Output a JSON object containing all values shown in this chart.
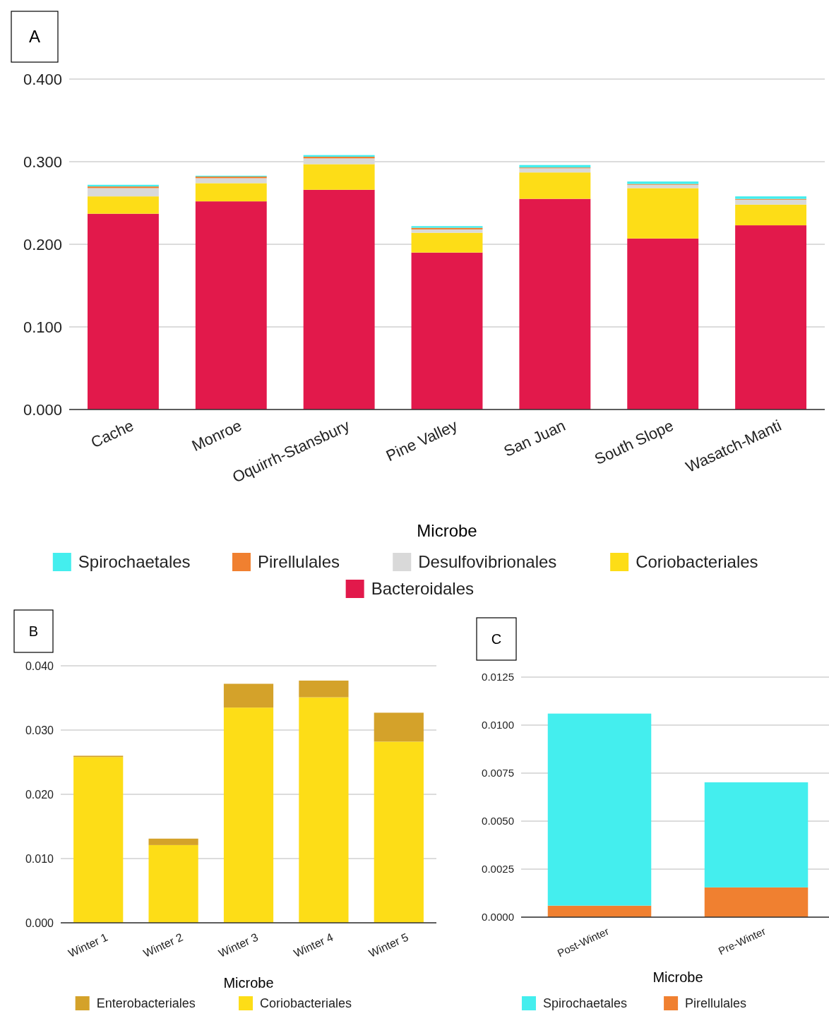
{
  "chart_data": [
    {
      "type": "bar",
      "stacked": true,
      "annotations": [
        "A"
      ],
      "xlabel": "Microbe",
      "categories": [
        "Cache",
        "Monroe",
        "Oquirrh-Stansbury",
        "Pine Valley",
        "San Juan",
        "South Slope",
        "Wasatch-Manti"
      ],
      "series": [
        {
          "name": "Bacteroidales",
          "color": "#e2194b",
          "values": [
            0.237,
            0.252,
            0.266,
            0.19,
            0.255,
            0.207,
            0.223
          ]
        },
        {
          "name": "Coriobacteriales",
          "color": "#fddd17",
          "values": [
            0.021,
            0.022,
            0.031,
            0.024,
            0.032,
            0.061,
            0.025
          ]
        },
        {
          "name": "Desulfovibrionales",
          "color": "#d9d9d9",
          "values": [
            0.01,
            0.006,
            0.007,
            0.004,
            0.005,
            0.004,
            0.006
          ]
        },
        {
          "name": "Pirellulales",
          "color": "#f08030",
          "values": [
            0.002,
            0.002,
            0.002,
            0.002,
            0.001,
            0.001,
            0.001
          ]
        },
        {
          "name": "Spirochaetales",
          "color": "#44eeee",
          "values": [
            0.002,
            0.001,
            0.002,
            0.002,
            0.003,
            0.003,
            0.003
          ]
        }
      ],
      "ylim": [
        0,
        0.4
      ],
      "yticks": [
        {
          "value": 0,
          "label": "0.000"
        },
        {
          "value": 0.1,
          "label": "0.100"
        },
        {
          "value": 0.2,
          "label": "0.200"
        },
        {
          "value": 0.3,
          "label": "0.300"
        },
        {
          "value": 0.4,
          "label": "0.400"
        }
      ],
      "grid": "y",
      "legend": "bottom"
    },
    {
      "type": "bar",
      "stacked": true,
      "annotations": [
        "B"
      ],
      "xlabel": "Microbe",
      "categories": [
        "Winter 1",
        "Winter 2",
        "Winter 3",
        "Winter 4",
        "Winter 5"
      ],
      "series": [
        {
          "name": "Coriobacteriales",
          "color": "#fddd17",
          "values": [
            0.0258,
            0.0121,
            0.0335,
            0.0351,
            0.0282
          ]
        },
        {
          "name": "Enterobacteriales",
          "color": "#d4a22a",
          "values": [
            0.0002,
            0.001,
            0.0037,
            0.0026,
            0.0045
          ]
        }
      ],
      "ylim": [
        0,
        0.04
      ],
      "yticks": [
        {
          "value": 0,
          "label": "0.000"
        },
        {
          "value": 0.01,
          "label": "0.010"
        },
        {
          "value": 0.02,
          "label": "0.020"
        },
        {
          "value": 0.03,
          "label": "0.030"
        },
        {
          "value": 0.04,
          "label": "0.040"
        }
      ],
      "grid": "y",
      "legend": "bottom"
    },
    {
      "type": "bar",
      "stacked": true,
      "annotations": [
        "C"
      ],
      "xlabel": "Microbe",
      "categories": [
        "Post-Winter",
        "Pre-Winter"
      ],
      "series": [
        {
          "name": "Pirellulales",
          "color": "#f08030",
          "values": [
            0.0006,
            0.00155
          ]
        },
        {
          "name": "Spirochaetales",
          "color": "#44eeee",
          "values": [
            0.01,
            0.00547
          ]
        }
      ],
      "ylim": [
        0,
        0.0125
      ],
      "yticks": [
        {
          "value": 0,
          "label": "0.0000"
        },
        {
          "value": 0.0025,
          "label": "0.0025"
        },
        {
          "value": 0.005,
          "label": "0.0050"
        },
        {
          "value": 0.0075,
          "label": "0.0075"
        },
        {
          "value": 0.01,
          "label": "0.0100"
        },
        {
          "value": 0.0125,
          "label": "0.0125"
        }
      ],
      "grid": "y",
      "legend": "bottom"
    }
  ]
}
